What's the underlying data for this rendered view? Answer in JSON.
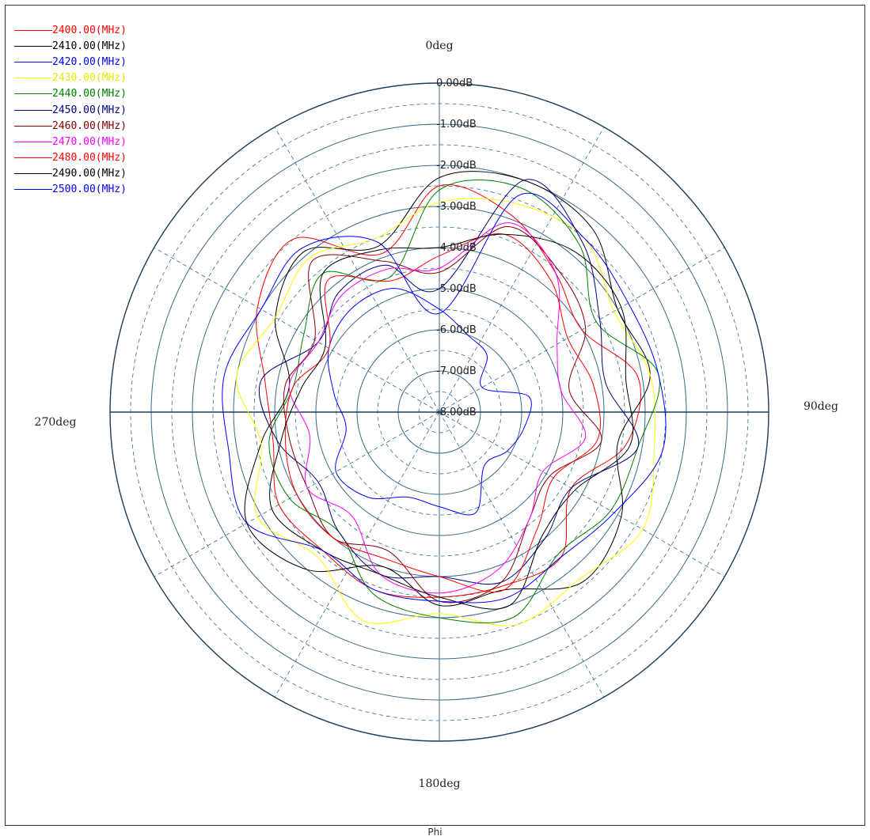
{
  "chart_data": {
    "type": "polar",
    "xlabel": "Phi",
    "angle_labels": [
      {
        "deg": 0,
        "text": "0deg"
      },
      {
        "deg": 90,
        "text": "90deg"
      },
      {
        "deg": 180,
        "text": "180deg"
      },
      {
        "deg": 270,
        "text": "270deg"
      }
    ],
    "radial_axis": {
      "min": -8,
      "max": 0,
      "ticks": [
        0,
        -1,
        -2,
        -3,
        -4,
        -5,
        -6,
        -7,
        -8
      ],
      "tick_labels": [
        "0.00dB",
        "-1.00dB",
        "-2.00dB",
        "-3.00dB",
        "-4.00dB",
        "-5.00dB",
        "-6.00dB",
        "-7.00dB",
        "-8.00dB"
      ]
    },
    "grid": true,
    "legend_position": "top-left",
    "phi_deg": [
      0,
      20,
      40,
      60,
      80,
      100,
      120,
      140,
      160,
      180,
      200,
      220,
      240,
      260,
      280,
      300,
      320,
      340
    ],
    "series": [
      {
        "name": "2400.00(MHz)",
        "color": "#ff0000",
        "values": [
          -2.5,
          -2.9,
          -3.6,
          -4.0,
          -3.1,
          -3.4,
          -4.3,
          -3.4,
          -3.5,
          -3.5,
          -3.4,
          -3.6,
          -3.5,
          -3.9,
          -3.7,
          -2.9,
          -2.5,
          -3.9
        ]
      },
      {
        "name": "2410.00(MHz)",
        "color": "#000000",
        "values": [
          -2.3,
          -2.0,
          -2.2,
          -3.0,
          -2.8,
          -3.6,
          -2.9,
          -2.6,
          -3.4,
          -3.3,
          -4.0,
          -3.0,
          -2.6,
          -3.6,
          -4.3,
          -3.4,
          -2.9,
          -3.7
        ]
      },
      {
        "name": "2420.00(MHz)",
        "color": "#0000ff",
        "values": [
          -5.5,
          -6.0,
          -6.2,
          -6.8,
          -5.8,
          -5.9,
          -6.1,
          -6.3,
          -5.4,
          -5.7,
          -5.8,
          -5.3,
          -5.1,
          -5.7,
          -5.4,
          -4.9,
          -4.7,
          -4.8
        ]
      },
      {
        "name": "2430.00(MHz)",
        "color": "#ffff00",
        "values": [
          -2.9,
          -2.6,
          -2.5,
          -3.1,
          -2.8,
          -2.7,
          -2.3,
          -2.7,
          -2.5,
          -3.1,
          -2.6,
          -3.4,
          -2.9,
          -3.6,
          -3.0,
          -3.4,
          -3.1,
          -3.5
        ]
      },
      {
        "name": "2440.00(MHz)",
        "color": "#008000",
        "values": [
          -2.6,
          -2.2,
          -2.7,
          -3.6,
          -2.6,
          -3.1,
          -3.2,
          -3.5,
          -2.7,
          -3.0,
          -3.3,
          -4.2,
          -3.8,
          -3.8,
          -4.4,
          -4.2,
          -3.6,
          -4.5
        ]
      },
      {
        "name": "2450.00(MHz)",
        "color": "#000080",
        "values": [
          -5.0,
          -2.0,
          -2.6,
          -3.5,
          -3.9,
          -3.1,
          -4.3,
          -4.0,
          -3.6,
          -4.0,
          -3.8,
          -4.2,
          -4.6,
          -4.0,
          -3.6,
          -4.6,
          -4.2,
          -4.2
        ]
      },
      {
        "name": "2460.00(MHz)",
        "color": "#800000",
        "values": [
          -4.6,
          -3.2,
          -3.5,
          -3.9,
          -4.8,
          -4.0,
          -4.9,
          -4.6,
          -3.6,
          -3.4,
          -4.4,
          -4.0,
          -4.3,
          -4.3,
          -4.2,
          -4.5,
          -3.2,
          -4.1
        ]
      },
      {
        "name": "2470.00(MHz)",
        "color": "#ff00ff",
        "values": [
          -4.5,
          -3.1,
          -3.6,
          -4.7,
          -5.0,
          -4.4,
          -5.1,
          -4.6,
          -3.9,
          -3.6,
          -3.8,
          -4.7,
          -4.3,
          -4.8,
          -4.3,
          -4.6,
          -4.3,
          -4.3
        ]
      },
      {
        "name": "2480.00(MHz)",
        "color": "#ff0000",
        "values": [
          -4.2,
          -3.4,
          -3.8,
          -4.4,
          -4.2,
          -4.1,
          -4.8,
          -4.3,
          -3.4,
          -4.0,
          -4.2,
          -4.0,
          -4.0,
          -4.2,
          -4.4,
          -4.9,
          -3.8,
          -4.6
        ]
      },
      {
        "name": "2490.00(MHz)",
        "color": "#000000",
        "values": [
          -4.0,
          -3.4,
          -2.9,
          -2.9,
          -3.4,
          -3.3,
          -4.2,
          -4.1,
          -3.0,
          -3.5,
          -3.8,
          -3.6,
          -3.3,
          -4.1,
          -4.6,
          -4.8,
          -3.6,
          -3.8
        ]
      },
      {
        "name": "2500.00(MHz)",
        "color": "#0000ff",
        "values": [
          -5.6,
          -2.4,
          -2.5,
          -2.7,
          -2.6,
          -2.5,
          -3.1,
          -3.4,
          -3.2,
          -3.4,
          -3.4,
          -3.6,
          -2.6,
          -2.8,
          -2.7,
          -3.0,
          -2.8,
          -3.6
        ]
      }
    ]
  }
}
